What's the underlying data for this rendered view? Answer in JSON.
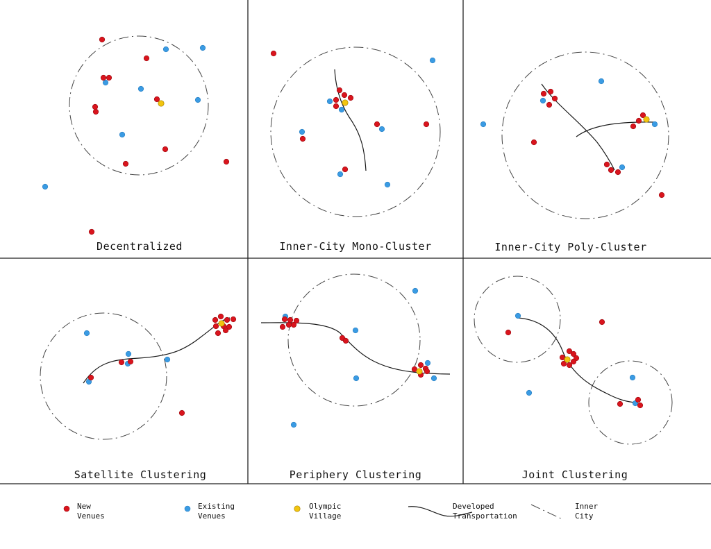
{
  "panels": [
    {
      "title": "Decentralized",
      "rings": [
        [
          200,
          152,
          100
        ]
      ],
      "paths": [],
      "new": [
        [
          147,
          57
        ],
        [
          211,
          84
        ],
        [
          149,
          112
        ],
        [
          157,
          112
        ],
        [
          137,
          154
        ],
        [
          138,
          161
        ],
        [
          226,
          143
        ],
        [
          238,
          215
        ],
        [
          181,
          236
        ],
        [
          326,
          233
        ],
        [
          132,
          334
        ]
      ],
      "existing": [
        [
          239,
          71
        ],
        [
          292,
          69
        ],
        [
          152,
          119
        ],
        [
          203,
          128
        ],
        [
          285,
          144
        ],
        [
          176,
          194
        ],
        [
          65,
          269
        ]
      ],
      "village": [
        [
          232,
          149
        ]
      ]
    },
    {
      "title": "Inner-City Mono-Cluster",
      "rings": [
        [
          512,
          190,
          122
        ]
      ],
      "paths": [
        "M482,100 C484,135 495,158 507,175 C520,195 525,215 527,246"
      ],
      "new": [
        [
          394,
          77
        ],
        [
          489,
          130
        ],
        [
          484,
          144
        ],
        [
          496,
          137
        ],
        [
          505,
          141
        ],
        [
          484,
          153
        ],
        [
          543,
          179
        ],
        [
          614,
          179
        ],
        [
          436,
          200
        ],
        [
          497,
          244
        ]
      ],
      "existing": [
        [
          623,
          87
        ],
        [
          475,
          146
        ],
        [
          492,
          158
        ],
        [
          435,
          190
        ],
        [
          550,
          186
        ],
        [
          490,
          251
        ],
        [
          558,
          266
        ]
      ],
      "village": [
        [
          497,
          148
        ]
      ]
    },
    {
      "title": "Inner-City Poly-Cluster",
      "rings": [
        [
          843,
          195,
          120
        ]
      ],
      "paths": [
        "M780,121 C800,150 835,175 860,205 C873,222 880,235 885,245",
        "M830,197 C855,178 900,175 945,176"
      ],
      "new": [
        [
          783,
          135
        ],
        [
          793,
          132
        ],
        [
          799,
          142
        ],
        [
          791,
          151
        ],
        [
          769,
          205
        ],
        [
          874,
          237
        ],
        [
          880,
          245
        ],
        [
          890,
          248
        ],
        [
          926,
          166
        ],
        [
          920,
          174
        ],
        [
          912,
          182
        ],
        [
          953,
          281
        ]
      ],
      "existing": [
        [
          866,
          117
        ],
        [
          782,
          145
        ],
        [
          696,
          179
        ],
        [
          943,
          179
        ],
        [
          896,
          241
        ]
      ],
      "village": [
        [
          931,
          172
        ]
      ]
    },
    {
      "title": "Satellite Clustering",
      "rings": [
        [
          149,
          542,
          91
        ]
      ],
      "paths": [
        "M120,552 C140,523 160,518 200,516 C245,513 265,505 290,485 C310,470 320,460 331,458"
      ],
      "new": [
        [
          310,
          461
        ],
        [
          318,
          456
        ],
        [
          327,
          461
        ],
        [
          336,
          460
        ],
        [
          311,
          470
        ],
        [
          322,
          470
        ],
        [
          330,
          471
        ],
        [
          314,
          480
        ],
        [
          325,
          476
        ],
        [
          175,
          522
        ],
        [
          188,
          521
        ],
        [
          131,
          544
        ],
        [
          262,
          595
        ]
      ],
      "existing": [
        [
          125,
          480
        ],
        [
          185,
          510
        ],
        [
          184,
          524
        ],
        [
          241,
          518
        ],
        [
          128,
          550
        ]
      ],
      "village": [
        [
          319,
          466
        ]
      ]
    },
    {
      "title": "Periphery Clustering",
      "rings": [
        [
          510,
          490,
          95
        ]
      ],
      "paths": [
        "M376,465 C410,465 470,462 490,480 C515,505 535,535 620,538 C635,539 645,539 648,539"
      ],
      "new": [
        [
          410,
          460
        ],
        [
          418,
          461
        ],
        [
          427,
          462
        ],
        [
          407,
          471
        ],
        [
          416,
          468
        ],
        [
          423,
          468
        ],
        [
          493,
          487
        ],
        [
          498,
          491
        ],
        [
          597,
          532
        ],
        [
          606,
          526
        ],
        [
          613,
          531
        ],
        [
          615,
          535
        ],
        [
          606,
          540
        ]
      ],
      "existing": [
        [
          411,
          456
        ],
        [
          598,
          419
        ],
        [
          512,
          476
        ],
        [
          616,
          523
        ],
        [
          625,
          545
        ],
        [
          513,
          545
        ],
        [
          423,
          612
        ]
      ],
      "village": [
        [
          604,
          535
        ]
      ]
    },
    {
      "title": "Joint Clustering",
      "rings": [
        [
          745,
          460,
          62
        ],
        [
          908,
          580,
          60
        ]
      ],
      "paths": [
        "M745,458 C780,460 800,480 810,505 C825,545 860,560 880,570 C895,577 905,579 915,580"
      ],
      "new": [
        [
          732,
          479
        ],
        [
          867,
          464
        ],
        [
          810,
          515
        ],
        [
          816,
          518
        ],
        [
          820,
          506
        ],
        [
          826,
          510
        ],
        [
          830,
          516
        ],
        [
          812,
          524
        ],
        [
          820,
          526
        ],
        [
          826,
          521
        ],
        [
          919,
          576
        ],
        [
          922,
          584
        ],
        [
          893,
          582
        ]
      ],
      "existing": [
        [
          746,
          455
        ],
        [
          911,
          544
        ],
        [
          762,
          566
        ],
        [
          915,
          581
        ]
      ],
      "village": [
        [
          817,
          518
        ]
      ]
    }
  ],
  "legend": {
    "items": [
      {
        "label": "New\nVenues"
      },
      {
        "label": "Existing\nVenues"
      },
      {
        "label": "Olympic\nVillage"
      },
      {
        "label": "Developed\nTransportation"
      },
      {
        "label": "Inner\nCity"
      }
    ]
  },
  "colors": {
    "new_venue": "#d9141d",
    "existing_venue": "#3a9be3",
    "olympic_village": "#f2c50f",
    "line": "#1a1a1a"
  }
}
